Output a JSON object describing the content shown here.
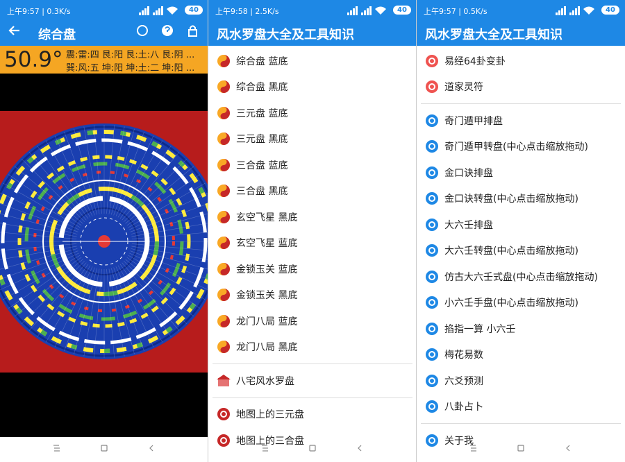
{
  "screens": [
    {
      "status": {
        "time": "上午9:57 | 0.3K/s",
        "battery": "40"
      },
      "title": "综合盘",
      "reading": {
        "degrees": "50.9°",
        "lines": [
          "震:雷:四 艮:阳 艮:土:八 艮:阴 ...",
          "巽:风:五  坤:阳  坤:土:二  坤:阳 ..."
        ]
      }
    },
    {
      "status": {
        "time": "上午9:58 | 2.5K/s",
        "battery": "40"
      },
      "title": "风水罗盘大全及工具知识",
      "groups": [
        [
          "综合盘  蓝底",
          "综合盘  黑底",
          "三元盘  蓝底",
          "三元盘  黑底",
          "三合盘  蓝底",
          "三合盘  黑底",
          "玄空飞星  黑底",
          "玄空飞星  蓝底",
          "金锁玉关  蓝底",
          "金锁玉关  黑底",
          "龙门八局  蓝底",
          "龙门八局  黑底"
        ],
        [
          "八宅风水罗盘"
        ],
        [
          "地图上的三元盘",
          "地图上的三合盘"
        ]
      ]
    },
    {
      "status": {
        "time": "上午9:57 | 0.5K/s",
        "battery": "40"
      },
      "title": "风水罗盘大全及工具知识",
      "groups": [
        [
          "易经64卦变卦",
          "道家灵符"
        ],
        [
          "奇门遁甲排盘",
          "奇门遁甲转盘(中心点击缩放拖动)",
          "金口诀排盘",
          "金口诀转盘(中心点击缩放拖动)",
          "大六壬排盘",
          "大六壬转盘(中心点击缩放拖动)",
          "仿古大六壬式盘(中心点击缩放拖动)",
          "小六壬手盘(中心点击缩放拖动)",
          "掐指一算 小六壬",
          "梅花易数",
          "六爻预测",
          "八卦占卜"
        ],
        [
          "关于我"
        ]
      ]
    }
  ]
}
